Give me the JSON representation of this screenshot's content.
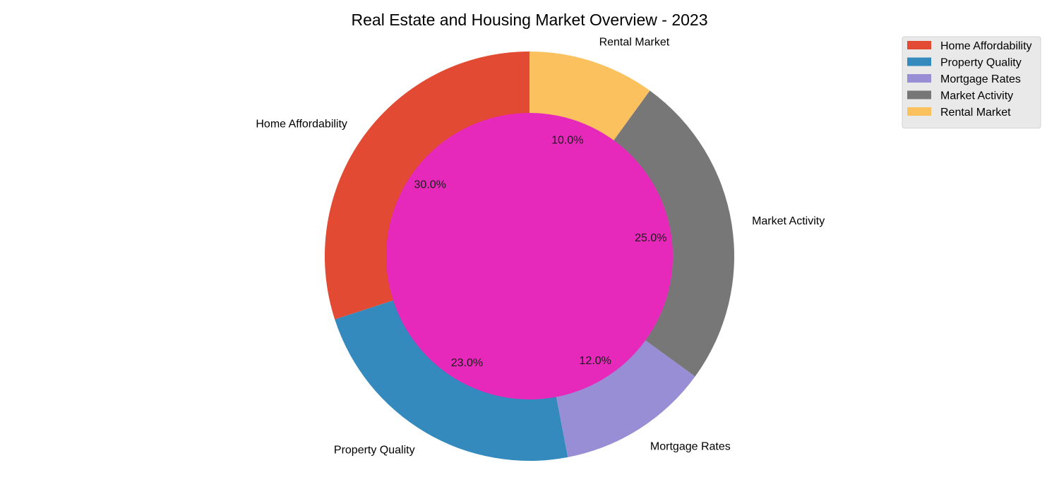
{
  "chart_data": {
    "type": "pie",
    "title": "Real Estate and Housing Market Overview - 2023",
    "categories": [
      "Home Affordability",
      "Property Quality",
      "Mortgage Rates",
      "Market Activity",
      "Rental Market"
    ],
    "values": [
      30,
      23,
      12,
      25,
      10
    ],
    "percent_labels": [
      "30.0%",
      "23.0%",
      "12.0%",
      "25.0%",
      "10.0%"
    ],
    "colors": [
      "#E24A33",
      "#348ABD",
      "#988ED5",
      "#777777",
      "#FBC15E"
    ],
    "center_color": "#E629BB",
    "donut": true,
    "start_angle_deg": 90,
    "direction": "counterclockwise",
    "legend": {
      "placement": "top-right",
      "entries": [
        "Home Affordability",
        "Property Quality",
        "Mortgage Rates",
        "Market Activity",
        "Rental Market"
      ],
      "background": "#E9E9E9"
    }
  }
}
